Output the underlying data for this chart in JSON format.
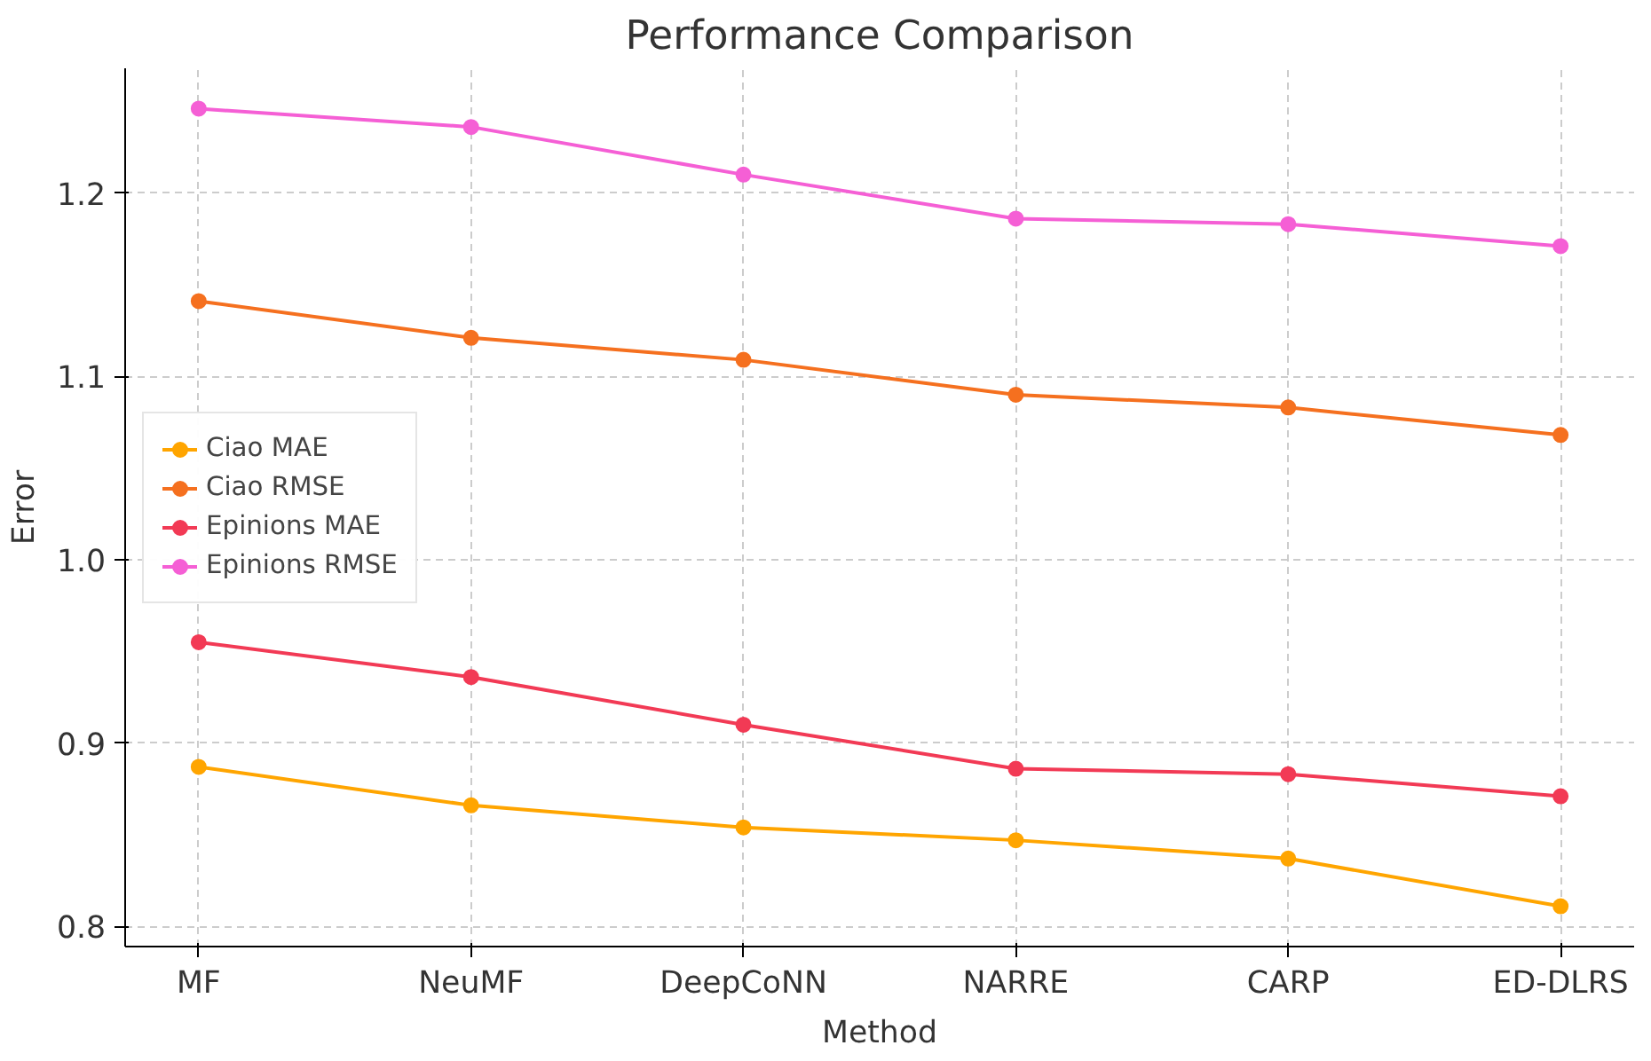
{
  "chart_data": {
    "type": "line",
    "title": "Performance Comparison",
    "xlabel": "Method",
    "ylabel": "Error",
    "categories": [
      "MF",
      "NeuMF",
      "DeepCoNN",
      "NARRE",
      "CARP",
      "ED-DLRS"
    ],
    "series": [
      {
        "name": "Ciao MAE",
        "color": "#ffa500",
        "values": [
          0.887,
          0.866,
          0.854,
          0.847,
          0.837,
          0.811
        ]
      },
      {
        "name": "Ciao RMSE",
        "color": "#f5701f",
        "values": [
          1.141,
          1.121,
          1.109,
          1.09,
          1.083,
          1.068
        ]
      },
      {
        "name": "Epinions MAE",
        "color": "#f23a55",
        "values": [
          0.955,
          0.936,
          0.91,
          0.886,
          0.883,
          0.871
        ]
      },
      {
        "name": "Epinions RMSE",
        "color": "#f55fd5",
        "values": [
          1.246,
          1.236,
          1.21,
          1.186,
          1.183,
          1.171
        ]
      }
    ],
    "ylim": [
      0.789,
      1.268
    ],
    "yticks": [
      0.8,
      0.9,
      {
        "value": 1.0,
        "label": "1.0"
      },
      1.1,
      1.2
    ],
    "grid": true,
    "legend": "center left",
    "marker": "circle",
    "line_style": "solid"
  }
}
